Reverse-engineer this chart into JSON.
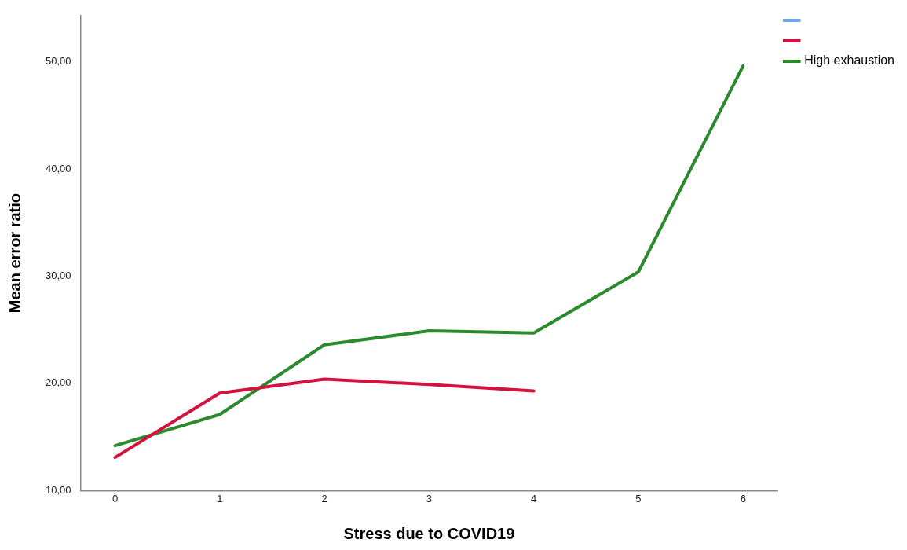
{
  "chart_data": {
    "type": "line",
    "xlabel": "Stress due to COVID19",
    "ylabel": "Mean error ratio",
    "x": [
      0,
      1,
      2,
      3,
      4,
      5,
      6
    ],
    "xlim": [
      -0.33,
      6.33
    ],
    "xticks": [
      0,
      1,
      2,
      3,
      4,
      5,
      6
    ],
    "ylim": [
      10,
      54.3
    ],
    "yticks": [
      {
        "value": 10,
        "label": "10,00"
      },
      {
        "value": 20,
        "label": "20,00"
      },
      {
        "value": 30,
        "label": "30,00"
      },
      {
        "value": 40,
        "label": "40,00"
      },
      {
        "value": 50,
        "label": "50,00"
      }
    ],
    "grid": false,
    "legend": "right",
    "marker": "none",
    "line_style": "solid",
    "series": [
      {
        "color": "#6ea6e8",
        "values": [
          null,
          null,
          null,
          null,
          null,
          null,
          null
        ]
      },
      {
        "color": "#d3123f",
        "values": [
          13.1,
          19.1,
          20.4,
          19.9,
          19.3,
          null,
          null
        ]
      },
      {
        "name": "High exhaustion",
        "color": "#2b8a2b",
        "values": [
          14.2,
          17.1,
          23.6,
          24.9,
          24.7,
          30.4,
          49.6
        ]
      }
    ]
  }
}
